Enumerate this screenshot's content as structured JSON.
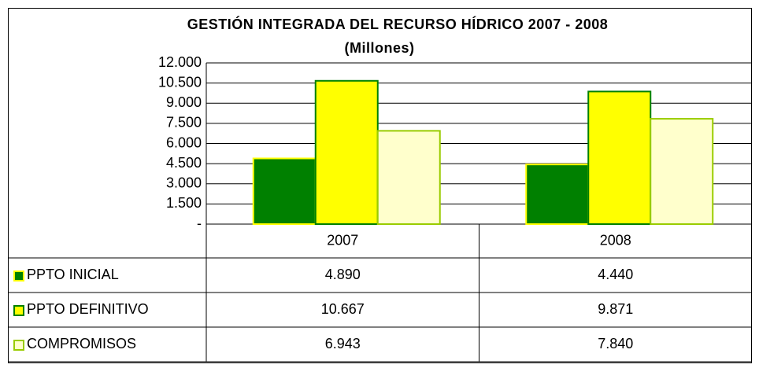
{
  "chart_data": {
    "type": "bar",
    "title": "GESTIÓN INTEGRADA DEL RECURSO HÍDRICO 2007 - 2008",
    "subtitle": "(Millones)",
    "categories": [
      "2007",
      "2008"
    ],
    "series": [
      {
        "name": "PPTO INICIAL",
        "color": "#008000",
        "border": "#ffff00",
        "values": [
          4890,
          4440
        ],
        "value_labels": [
          "4.890",
          "4.440"
        ]
      },
      {
        "name": "PPTO DEFINITIVO",
        "color": "#ffff00",
        "border": "#008000",
        "values": [
          10667,
          9871
        ],
        "value_labels": [
          "10.667",
          "9.871"
        ]
      },
      {
        "name": "COMPROMISOS",
        "color": "#ffffcc",
        "border": "#99cc00",
        "values": [
          6943,
          7840
        ],
        "value_labels": [
          "6.943",
          "7.840"
        ]
      }
    ],
    "ylim": [
      0,
      12000
    ],
    "yticks": [
      {
        "value": 0,
        "label": "-"
      },
      {
        "value": 1500,
        "label": "1.500"
      },
      {
        "value": 3000,
        "label": "3.000"
      },
      {
        "value": 4500,
        "label": "4.500"
      },
      {
        "value": 6000,
        "label": "6.000"
      },
      {
        "value": 7500,
        "label": "7.500"
      },
      {
        "value": 9000,
        "label": "9.000"
      },
      {
        "value": 10500,
        "label": "10.500"
      },
      {
        "value": 12000,
        "label": "12.000"
      }
    ],
    "grid": true
  }
}
